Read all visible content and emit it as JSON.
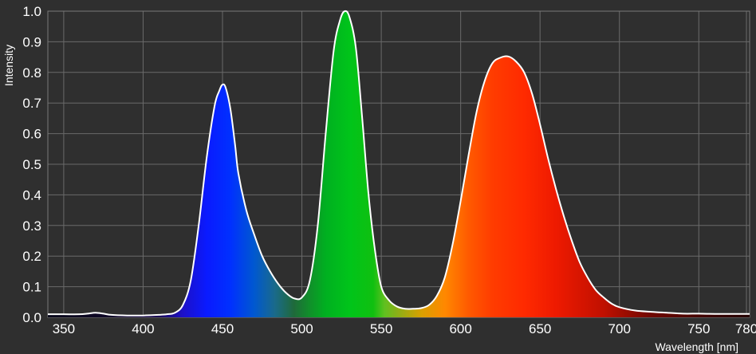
{
  "chart_data": {
    "type": "area",
    "title": "",
    "xlabel": "Wavelength [nm]",
    "ylabel": "Intensity",
    "xlim": [
      340,
      782
    ],
    "ylim": [
      0,
      1.0
    ],
    "x_ticks": [
      350,
      400,
      450,
      500,
      550,
      600,
      650,
      700,
      750,
      780
    ],
    "y_ticks": [
      0.0,
      0.1,
      0.2,
      0.3,
      0.4,
      0.5,
      0.6,
      0.7,
      0.8,
      0.9,
      1.0
    ],
    "y_tick_labels": [
      "0.0",
      "0.1",
      "0.2",
      "0.3",
      "0.4",
      "0.5",
      "0.6",
      "0.7",
      "0.8",
      "0.9",
      "1.0"
    ],
    "grid": true,
    "fill": "visible-spectrum gradient under curve",
    "colors": {
      "background": "#2f2f2f",
      "grid": "#6a6a6a",
      "text": "#ffffff",
      "curve": "#ffffff"
    },
    "series": [
      {
        "x": [
          340,
          350,
          360,
          365,
          370,
          375,
          380,
          390,
          400,
          410,
          415,
          420,
          425,
          430,
          435,
          440,
          445,
          448,
          450,
          452,
          455,
          458,
          460,
          465,
          470,
          475,
          480,
          485,
          490,
          495,
          500,
          505,
          510,
          515,
          520,
          524,
          527,
          530,
          534,
          538,
          542,
          546,
          550,
          555,
          560,
          565,
          570,
          575,
          580,
          585,
          590,
          595,
          600,
          605,
          610,
          615,
          620,
          625,
          630,
          635,
          640,
          645,
          650,
          655,
          660,
          665,
          670,
          675,
          680,
          685,
          690,
          695,
          700,
          710,
          720,
          730,
          740,
          750,
          760,
          770,
          782
        ],
        "y": [
          0.01,
          0.01,
          0.01,
          0.012,
          0.015,
          0.012,
          0.008,
          0.006,
          0.006,
          0.008,
          0.01,
          0.015,
          0.04,
          0.12,
          0.3,
          0.52,
          0.69,
          0.74,
          0.76,
          0.75,
          0.68,
          0.56,
          0.47,
          0.35,
          0.27,
          0.2,
          0.15,
          0.11,
          0.08,
          0.062,
          0.065,
          0.12,
          0.3,
          0.6,
          0.87,
          0.97,
          1.0,
          0.98,
          0.88,
          0.65,
          0.4,
          0.22,
          0.1,
          0.055,
          0.035,
          0.028,
          0.028,
          0.03,
          0.04,
          0.07,
          0.13,
          0.24,
          0.38,
          0.53,
          0.67,
          0.77,
          0.83,
          0.848,
          0.852,
          0.835,
          0.8,
          0.73,
          0.63,
          0.52,
          0.42,
          0.33,
          0.25,
          0.18,
          0.13,
          0.09,
          0.065,
          0.045,
          0.033,
          0.022,
          0.018,
          0.015,
          0.012,
          0.012,
          0.011,
          0.011,
          0.011
        ]
      }
    ]
  }
}
